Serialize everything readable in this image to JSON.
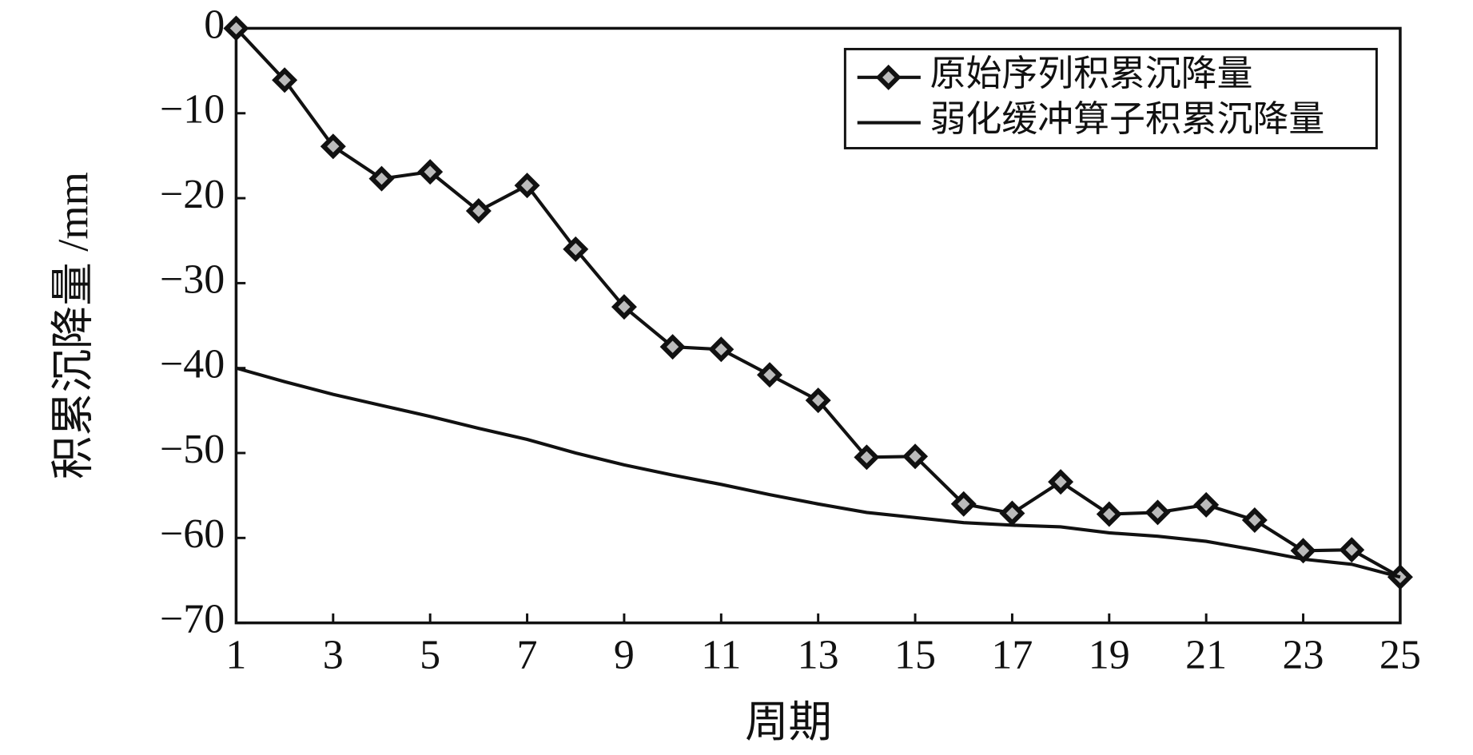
{
  "chart_data": {
    "type": "line",
    "x_label": "周期",
    "y_label": "积累沉降量 /mm",
    "x": [
      1,
      2,
      3,
      4,
      5,
      6,
      7,
      8,
      9,
      10,
      11,
      12,
      13,
      14,
      15,
      16,
      17,
      18,
      19,
      20,
      21,
      22,
      23,
      24,
      25
    ],
    "series": [
      {
        "name": "原始序列积累沉降量",
        "color": "#111111",
        "marker": "diamond",
        "values": [
          0,
          -6.1,
          -13.9,
          -17.7,
          -16.9,
          -21.5,
          -18.5,
          -26,
          -32.8,
          -37.5,
          -37.8,
          -40.8,
          -43.8,
          -50.5,
          -50.4,
          -56,
          -57.1,
          -53.4,
          -57.2,
          -57,
          -56.1,
          -57.9,
          -61.5,
          -61.4,
          -64.6
        ]
      },
      {
        "name": "弱化缓冲算子积累沉降量",
        "color": "#111111",
        "marker": "none",
        "values": [
          -40,
          -41.6,
          -43.1,
          -44.4,
          -45.7,
          -47.1,
          -48.4,
          -50,
          -51.4,
          -52.6,
          -53.7,
          -54.9,
          -56,
          -57,
          -57.6,
          -58.2,
          -58.5,
          -58.7,
          -59.4,
          -59.8,
          -60.4,
          -61.4,
          -62.5,
          -63.1,
          -64.6
        ]
      }
    ],
    "xlim": [
      1,
      25
    ],
    "xticks": [
      1,
      3,
      5,
      7,
      9,
      11,
      13,
      15,
      17,
      19,
      21,
      23,
      25
    ],
    "ylim": [
      -70,
      0
    ],
    "yticks": [
      {
        "value": -70,
        "label": "−70"
      },
      {
        "value": -60,
        "label": "−60"
      },
      {
        "value": -50,
        "label": "−50"
      },
      {
        "value": -40,
        "label": "−40"
      },
      {
        "value": -30,
        "label": "−30"
      },
      {
        "value": -20,
        "label": "−20"
      },
      {
        "value": -10,
        "label": "−10"
      },
      0
    ],
    "legend": "upper right",
    "grid": false
  }
}
